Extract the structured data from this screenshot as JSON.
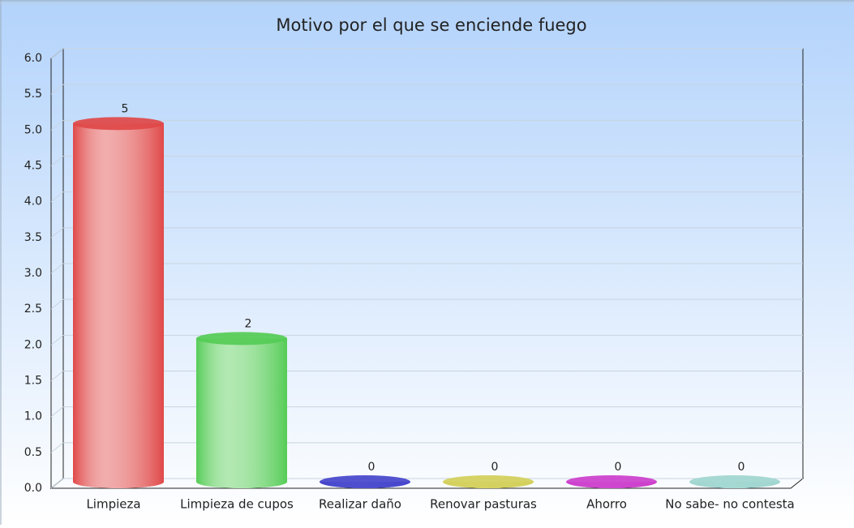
{
  "chart_data": {
    "type": "bar",
    "title": "Motivo por el que se enciende fuego",
    "categories": [
      "Limpieza",
      "Limpieza de cupos",
      "Realizar daño",
      "Renovar pasturas",
      "Ahorro",
      "No sabe- no contesta"
    ],
    "values": [
      5,
      2,
      0,
      0,
      0,
      0
    ],
    "colors": [
      "#e04848",
      "#55cc55",
      "#4545cc",
      "#d2cf5a",
      "#cc3fcc",
      "#9fd6cf"
    ],
    "ylim": [
      0,
      6
    ],
    "yticks": [
      {
        "value": 0,
        "label": "0.0"
      },
      0.5,
      {
        "value": 1,
        "label": "1.0"
      },
      1.5,
      {
        "value": 2,
        "label": "2.0"
      },
      2.5,
      {
        "value": 3,
        "label": "3.0"
      },
      3.5,
      {
        "value": 4,
        "label": "4.0"
      },
      4.5,
      {
        "value": 5,
        "label": "5.0"
      },
      5.5,
      {
        "value": 6,
        "label": "6.0"
      }
    ],
    "grid": true
  }
}
